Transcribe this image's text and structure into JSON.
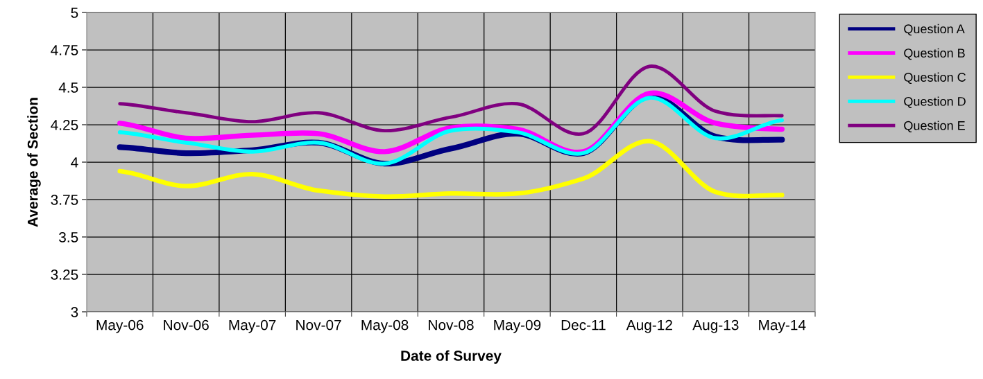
{
  "chart_data": {
    "type": "line",
    "xlabel": "Date of Survey",
    "ylabel": "Average of Section",
    "categories": [
      "May-06",
      "Nov-06",
      "May-07",
      "Nov-07",
      "May-08",
      "Nov-08",
      "May-09",
      "Dec-11",
      "Aug-12",
      "Aug-13",
      "May-14"
    ],
    "series": [
      {
        "name": "Question A",
        "color": "#000080",
        "values": [
          4.1,
          4.06,
          4.08,
          4.13,
          3.99,
          4.09,
          4.19,
          4.06,
          4.44,
          4.17,
          4.15
        ]
      },
      {
        "name": "Question B",
        "color": "#ff00ff",
        "values": [
          4.26,
          4.16,
          4.18,
          4.19,
          4.07,
          4.23,
          4.22,
          4.07,
          4.46,
          4.26,
          4.22
        ]
      },
      {
        "name": "Question C",
        "color": "#ffff00",
        "values": [
          3.94,
          3.84,
          3.92,
          3.81,
          3.77,
          3.79,
          3.79,
          3.89,
          4.14,
          3.8,
          3.78
        ]
      },
      {
        "name": "Question D",
        "color": "#00ffff",
        "values": [
          4.2,
          4.13,
          4.07,
          4.13,
          3.99,
          4.21,
          4.2,
          4.06,
          4.43,
          4.16,
          4.28
        ]
      },
      {
        "name": "Question E",
        "color": "#800080",
        "values": [
          4.39,
          4.33,
          4.27,
          4.33,
          4.21,
          4.3,
          4.39,
          4.19,
          4.64,
          4.34,
          4.31
        ]
      }
    ],
    "ylim": [
      3,
      5
    ],
    "yticks": [
      3,
      3.25,
      3.5,
      3.75,
      4,
      4.25,
      4.5,
      4.75,
      5
    ],
    "grid": true,
    "legend": "right",
    "marker": "none",
    "line_style": "solid"
  }
}
